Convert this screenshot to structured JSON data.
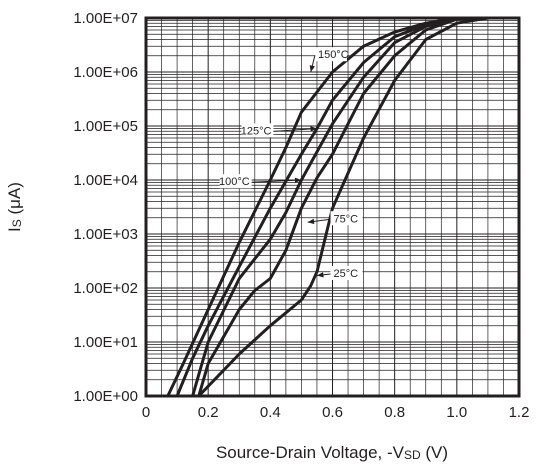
{
  "chart_data": {
    "type": "line",
    "xlabel": "Source-Drain Voltage, -V",
    "xlabel_sub": "SD",
    "xlabel_unit": " (V)",
    "ylabel": "Is (μA)",
    "ylabel_main": "I",
    "ylabel_sub": "S",
    "ylabel_unit": " (μA)",
    "xlim": [
      0,
      1.2
    ],
    "ylim": [
      1,
      10000000
    ],
    "y_scale": "log",
    "grid": true,
    "x_ticks": [
      "0",
      "0.2",
      "0.4",
      "0.6",
      "0.8",
      "1.0",
      "1.2"
    ],
    "y_ticks": [
      "1.00E+00",
      "1.00E+01",
      "1.00E+02",
      "1.00E+03",
      "1.00E+04",
      "1.00E+05",
      "1.00E+06",
      "1.00E+07"
    ],
    "series": [
      {
        "name": "150°C",
        "x": [
          0.07,
          0.12,
          0.2,
          0.3,
          0.4,
          0.45,
          0.5,
          0.6,
          0.7,
          0.8,
          0.9,
          1.0,
          1.05
        ],
        "y": [
          1,
          4,
          40,
          700,
          10000,
          40000,
          180000,
          1000000,
          3000000,
          5500000,
          8000000,
          10000000,
          10000000
        ]
      },
      {
        "name": "125°C",
        "x": [
          0.1,
          0.15,
          0.2,
          0.3,
          0.4,
          0.5,
          0.55,
          0.6,
          0.7,
          0.8,
          0.9,
          1.0,
          1.07
        ],
        "y": [
          1,
          5,
          20,
          250,
          3000,
          30000,
          90000,
          300000,
          1500000,
          4500000,
          7500000,
          10000000,
          10000000
        ]
      },
      {
        "name": "100°C",
        "x": [
          0.15,
          0.2,
          0.3,
          0.4,
          0.45,
          0.5,
          0.6,
          0.7,
          0.8,
          0.9,
          1.0,
          1.08
        ],
        "y": [
          1,
          10,
          150,
          800,
          2500,
          10000,
          110000,
          800000,
          3500000,
          7000000,
          10000000,
          10000000
        ]
      },
      {
        "name": "75°C",
        "x": [
          0.17,
          0.2,
          0.3,
          0.35,
          0.4,
          0.45,
          0.5,
          0.55,
          0.6,
          0.7,
          0.8,
          0.9,
          1.0,
          1.1
        ],
        "y": [
          1,
          4,
          40,
          90,
          150,
          500,
          3000,
          11000,
          30000,
          400000,
          2000000,
          6000000,
          9500000,
          10000000
        ]
      },
      {
        "name": "25°C",
        "x": [
          0.17,
          0.3,
          0.4,
          0.5,
          0.53,
          0.55,
          0.6,
          0.7,
          0.8,
          0.9,
          1.0,
          1.1
        ],
        "y": [
          1,
          6,
          20,
          60,
          110,
          200,
          3000,
          60000,
          700000,
          4000000,
          8000000,
          10000000
        ]
      }
    ],
    "annotations": [
      {
        "text": "150°C",
        "series": "150°C",
        "x": 0.53,
        "y": 1000000,
        "label_x": 0.55,
        "label_y": 1800000
      },
      {
        "text": "125°C",
        "series": "125°C",
        "x": 0.55,
        "y": 90000,
        "label_x": 0.41,
        "label_y": 70000
      },
      {
        "text": "100°C",
        "series": "100°C",
        "x": 0.5,
        "y": 10000,
        "label_x": 0.34,
        "label_y": 8000
      },
      {
        "text": "75°C",
        "series": "75°C",
        "x": 0.52,
        "y": 1650,
        "label_x": 0.6,
        "label_y": 1650
      },
      {
        "text": "25°C",
        "series": "25°C",
        "x": 0.55,
        "y": 170,
        "label_x": 0.6,
        "label_y": 160
      }
    ]
  }
}
